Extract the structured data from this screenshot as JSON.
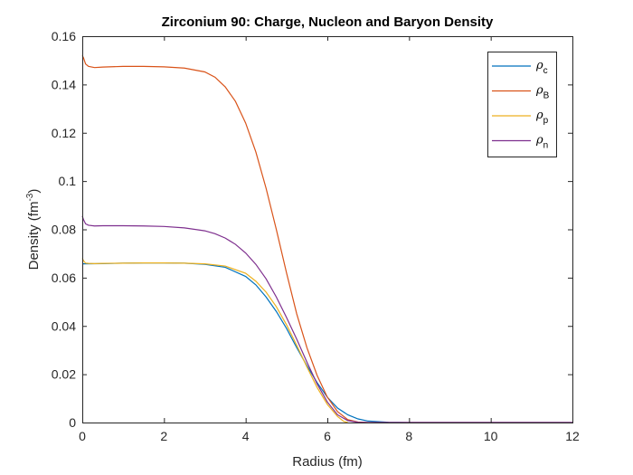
{
  "chart_data": {
    "type": "line",
    "title": "Zirconium 90: Charge, Nucleon and Baryon Density",
    "xlabel": "Radius (fm)",
    "ylabel": "Density (fm",
    "ylabel_sup": "-3",
    "ylabel_end": ")",
    "xlim": [
      0,
      12
    ],
    "ylim": [
      0,
      0.16
    ],
    "xticks": [
      0,
      2,
      4,
      6,
      8,
      10,
      12
    ],
    "xtick_labels": [
      "0",
      "2",
      "4",
      "6",
      "8",
      "10",
      "12"
    ],
    "yticks": [
      0,
      0.02,
      0.04,
      0.06,
      0.08,
      0.1,
      0.12,
      0.14,
      0.16
    ],
    "ytick_labels": [
      "0",
      "0.02",
      "0.04",
      "0.06",
      "0.08",
      "0.1",
      "0.12",
      "0.14",
      "0.16"
    ],
    "grid": false,
    "legend_position": "top-right",
    "series": [
      {
        "name": "ρ",
        "sub": "c",
        "color": "#0072BD",
        "x": [
          0,
          0.5,
          1,
          1.5,
          2,
          2.5,
          3,
          3.5,
          4,
          4.25,
          4.5,
          4.75,
          5,
          5.25,
          5.5,
          5.75,
          6,
          6.25,
          6.5,
          6.75,
          7,
          7.5,
          8,
          9,
          10,
          11,
          12
        ],
        "y": [
          0.0657,
          0.0658,
          0.066,
          0.0661,
          0.0661,
          0.066,
          0.0655,
          0.0643,
          0.0605,
          0.057,
          0.052,
          0.046,
          0.039,
          0.031,
          0.0235,
          0.0165,
          0.0105,
          0.006,
          0.0032,
          0.0015,
          0.0006,
          0.0001,
          0,
          0,
          0,
          0,
          0
        ]
      },
      {
        "name": "ρ",
        "sub": "B",
        "color": "#D95319",
        "x": [
          0,
          0.03,
          0.08,
          0.15,
          0.3,
          0.5,
          1,
          1.5,
          2,
          2.5,
          3,
          3.25,
          3.5,
          3.75,
          4,
          4.25,
          4.5,
          4.75,
          5,
          5.25,
          5.5,
          5.75,
          6,
          6.25,
          6.5,
          6.75,
          7,
          7.5,
          8,
          9,
          10,
          11,
          12
        ],
        "y": [
          0.152,
          0.151,
          0.1485,
          0.1475,
          0.147,
          0.1472,
          0.1475,
          0.1475,
          0.1473,
          0.1468,
          0.1452,
          0.143,
          0.139,
          0.133,
          0.124,
          0.112,
          0.097,
          0.08,
          0.062,
          0.045,
          0.031,
          0.0195,
          0.0105,
          0.0045,
          0.0012,
          0.0002,
          0,
          0,
          0,
          0,
          0,
          0,
          0
        ]
      },
      {
        "name": "ρ",
        "sub": "p",
        "color": "#EDB120",
        "x": [
          0,
          0.03,
          0.08,
          0.15,
          0.3,
          0.5,
          1,
          1.5,
          2,
          2.5,
          3,
          3.5,
          4,
          4.25,
          4.5,
          4.75,
          5,
          5.25,
          5.5,
          5.75,
          6,
          6.25,
          6.4,
          6.5
        ],
        "y": [
          0.068,
          0.067,
          0.066,
          0.0659,
          0.0658,
          0.0659,
          0.066,
          0.0661,
          0.0661,
          0.066,
          0.0657,
          0.0648,
          0.0618,
          0.0585,
          0.054,
          0.048,
          0.0405,
          0.032,
          0.023,
          0.0145,
          0.0075,
          0.0025,
          0.0005,
          0
        ]
      },
      {
        "name": "ρ",
        "sub": "n",
        "color": "#7E2F8E",
        "x": [
          0,
          0.03,
          0.08,
          0.15,
          0.3,
          0.5,
          1,
          1.5,
          2,
          2.5,
          3,
          3.25,
          3.5,
          3.75,
          4,
          4.25,
          4.5,
          4.75,
          5,
          5.25,
          5.5,
          5.75,
          6,
          6.25,
          6.5,
          6.75,
          7,
          8,
          9,
          10,
          11,
          12
        ],
        "y": [
          0.0855,
          0.084,
          0.0823,
          0.0817,
          0.0814,
          0.0815,
          0.0815,
          0.0814,
          0.0812,
          0.0806,
          0.0794,
          0.0782,
          0.0764,
          0.0738,
          0.0702,
          0.0655,
          0.0595,
          0.052,
          0.0435,
          0.0345,
          0.025,
          0.016,
          0.0085,
          0.0032,
          0.0008,
          0.0001,
          0,
          0,
          0,
          0,
          0,
          0
        ]
      }
    ]
  }
}
